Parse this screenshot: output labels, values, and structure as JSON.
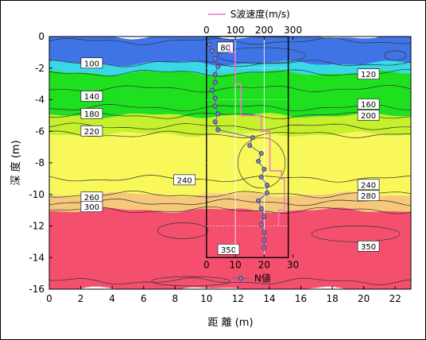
{
  "chart_data": {
    "type": "contour",
    "xlabel": "距 離 (m)",
    "ylabel": "深 度 (m)",
    "xlim": [
      0,
      23
    ],
    "ylim": [
      -16,
      0
    ],
    "x_ticks": [
      "0",
      "2",
      "4",
      "6",
      "8",
      "10",
      "12",
      "14",
      "16",
      "18",
      "20",
      "22"
    ],
    "y_ticks": [
      "0",
      "-2",
      "-4",
      "-6",
      "-8",
      "-10",
      "-12",
      "-14",
      "-16"
    ],
    "contour_bands": [
      {
        "from": 0,
        "to": -1.7,
        "color": "#3f74e6"
      },
      {
        "from": -1.7,
        "to": -2.3,
        "color": "#37d9e6"
      },
      {
        "from": -2.3,
        "to": -5.0,
        "color": "#1fe01f"
      },
      {
        "from": -5.0,
        "to": -6.2,
        "color": "#c6f02c"
      },
      {
        "from": -6.2,
        "to": -10.0,
        "color": "#f8f85a"
      },
      {
        "from": -10.0,
        "to": -11.0,
        "color": "#f5c87a"
      },
      {
        "from": -11.0,
        "to": -16.0,
        "color": "#f4506e"
      }
    ],
    "contour_labels": [
      {
        "text": "80",
        "x": 11.2,
        "y": -0.7
      },
      {
        "text": "100",
        "x": 2.7,
        "y": -1.7
      },
      {
        "text": "120",
        "x": 20.3,
        "y": -2.4
      },
      {
        "text": "140",
        "x": 2.7,
        "y": -3.8
      },
      {
        "text": "160",
        "x": 20.3,
        "y": -4.3
      },
      {
        "text": "180",
        "x": 2.7,
        "y": -4.9
      },
      {
        "text": "200",
        "x": 20.3,
        "y": -5.0
      },
      {
        "text": "220",
        "x": 2.7,
        "y": -6.0
      },
      {
        "text": "240",
        "x": 8.6,
        "y": -9.1
      },
      {
        "text": "240",
        "x": 20.3,
        "y": -9.4
      },
      {
        "text": "260",
        "x": 2.7,
        "y": -10.2
      },
      {
        "text": "280",
        "x": 20.3,
        "y": -10.1
      },
      {
        "text": "300",
        "x": 2.7,
        "y": -10.8
      },
      {
        "text": "350",
        "x": 11.4,
        "y": -13.5
      },
      {
        "text": "350",
        "x": 20.3,
        "y": -13.3
      }
    ],
    "inset": {
      "box_x": [
        10,
        15.2
      ],
      "box_y": [
        0,
        -14
      ],
      "top_axis_label": "S波速度(m/s)",
      "top_ticks": [
        "0",
        "100",
        "200",
        "300"
      ],
      "top_range": [
        0,
        300
      ],
      "bottom_axis_label": "N値",
      "bottom_ticks": [
        "0",
        "10",
        "20",
        "30"
      ],
      "bottom_range": [
        0,
        30
      ],
      "vs_profile": {
        "name": "S波速度(m/s)",
        "color": "#f078c8",
        "steps": [
          {
            "depth_top": -0.5,
            "depth_bottom": -1.0,
            "vs": 80
          },
          {
            "depth_top": -1.0,
            "depth_bottom": -3.0,
            "vs": 100
          },
          {
            "depth_top": -3.0,
            "depth_bottom": -5.0,
            "vs": 120
          },
          {
            "depth_top": -5.0,
            "depth_bottom": -6.0,
            "vs": 190
          },
          {
            "depth_top": -6.0,
            "depth_bottom": -8.5,
            "vs": 220
          },
          {
            "depth_top": -8.5,
            "depth_bottom": -9.0,
            "vs": 260
          },
          {
            "depth_top": -9.0,
            "depth_bottom": -11.0,
            "vs": 270
          },
          {
            "depth_top": -11.0,
            "depth_bottom": -12.0,
            "vs": 250
          }
        ]
      },
      "n_values": {
        "name": "N値",
        "color": "#8080c0",
        "points": [
          {
            "depth": -0.5,
            "n": 1
          },
          {
            "depth": -0.9,
            "n": 2
          },
          {
            "depth": -1.4,
            "n": 3
          },
          {
            "depth": -1.9,
            "n": 4
          },
          {
            "depth": -2.4,
            "n": 3
          },
          {
            "depth": -2.9,
            "n": 3
          },
          {
            "depth": -3.4,
            "n": 2
          },
          {
            "depth": -3.9,
            "n": 3
          },
          {
            "depth": -4.4,
            "n": 3
          },
          {
            "depth": -4.9,
            "n": 4
          },
          {
            "depth": -5.4,
            "n": 3
          },
          {
            "depth": -5.9,
            "n": 4
          },
          {
            "depth": -6.4,
            "n": 16
          },
          {
            "depth": -6.9,
            "n": 15
          },
          {
            "depth": -7.4,
            "n": 19
          },
          {
            "depth": -7.9,
            "n": 18
          },
          {
            "depth": -8.4,
            "n": 20
          },
          {
            "depth": -8.9,
            "n": 19
          },
          {
            "depth": -9.4,
            "n": 21
          },
          {
            "depth": -9.9,
            "n": 21
          },
          {
            "depth": -10.4,
            "n": 18
          },
          {
            "depth": -10.9,
            "n": 19
          },
          {
            "depth": -11.4,
            "n": 20
          },
          {
            "depth": -11.9,
            "n": 19
          },
          {
            "depth": -12.4,
            "n": 20
          },
          {
            "depth": -12.9,
            "n": 20
          },
          {
            "depth": -13.4,
            "n": 20
          }
        ]
      }
    }
  }
}
